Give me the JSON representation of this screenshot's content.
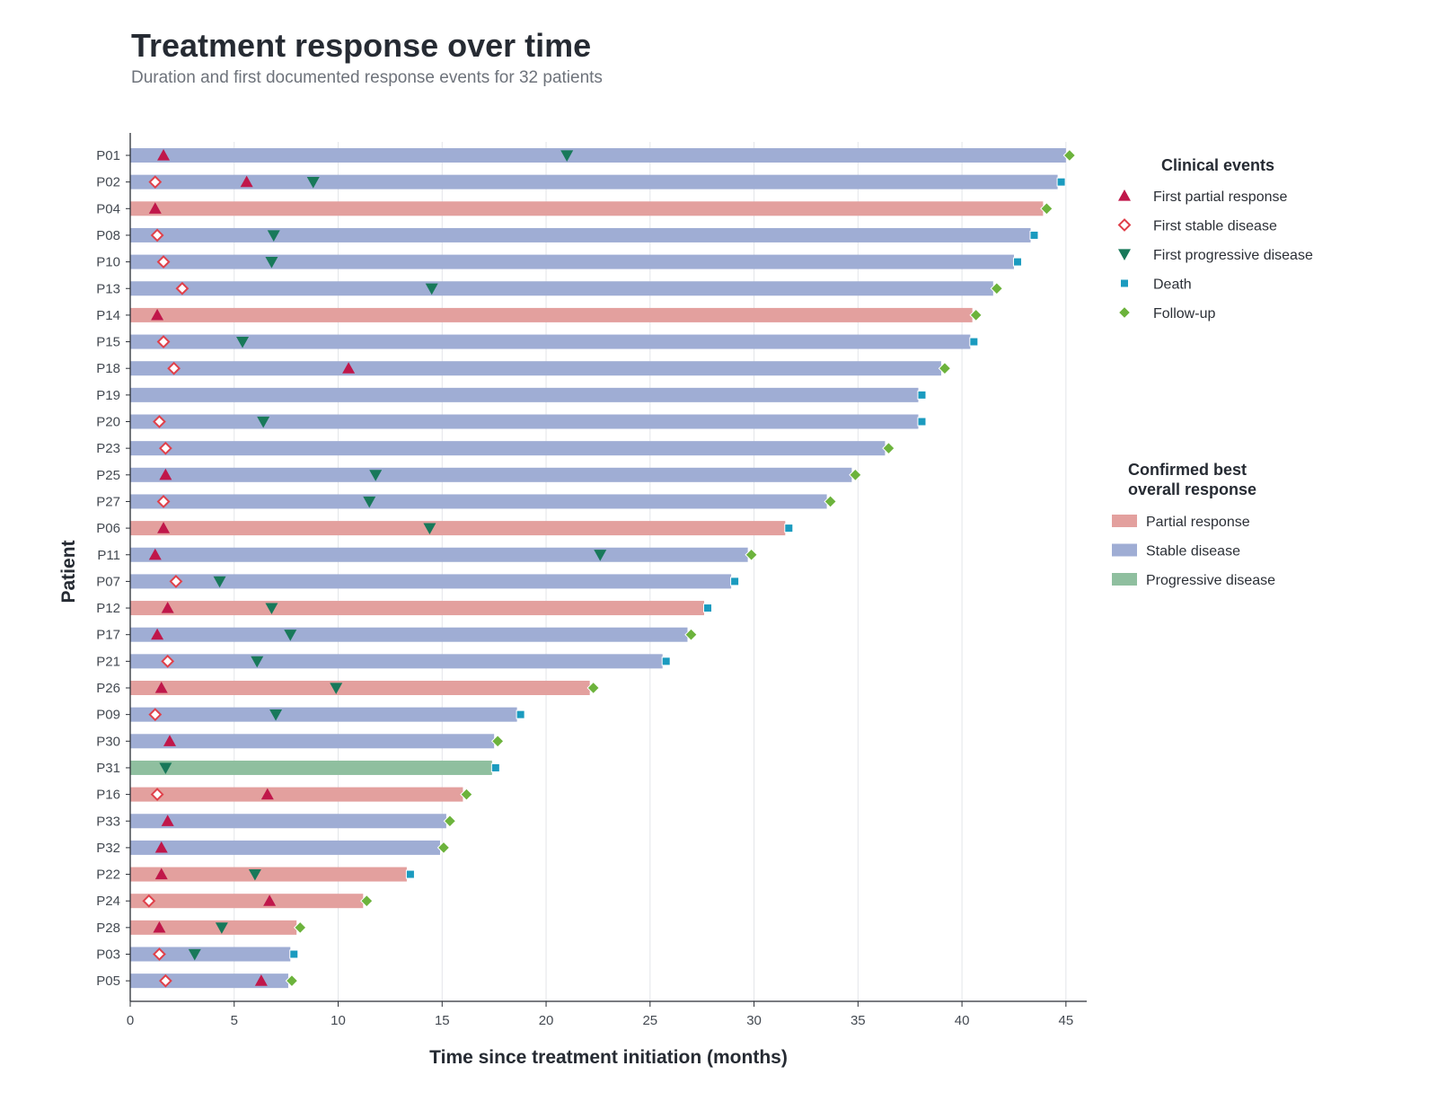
{
  "title": "Treatment response over time",
  "subtitle": "Duration and first documented response events for 32 patients",
  "chart_data": {
    "type": "swimmer",
    "xlabel": "Time since treatment initiation (months)",
    "ylabel": "Patient",
    "xlim": [
      0,
      46
    ],
    "xticks": [
      0,
      5,
      10,
      15,
      20,
      25,
      30,
      35,
      40,
      45
    ],
    "grid": "vertical",
    "colors": {
      "PR": "#e3a09e",
      "SD": "#9fadd4",
      "PD": "#8fbf9f",
      "partial": "#c0174a",
      "stable": "#e0404a",
      "progressive": "#18795a",
      "death": "#1b9bbf",
      "followup": "#6cb33c"
    },
    "legend_events": {
      "title": "Clinical events",
      "items": [
        {
          "key": "partial",
          "label": "First partial response",
          "marker": "triangle-up"
        },
        {
          "key": "stable",
          "label": "First stable disease",
          "marker": "diamond-open"
        },
        {
          "key": "progressive",
          "label": "First progressive disease",
          "marker": "triangle-down"
        },
        {
          "key": "death",
          "label": "Death",
          "marker": "square"
        },
        {
          "key": "followup",
          "label": "Follow-up",
          "marker": "diamond"
        }
      ]
    },
    "legend_response": {
      "title_lines": [
        "Confirmed best",
        "overall response"
      ],
      "items": [
        {
          "key": "PR",
          "label": "Partial response"
        },
        {
          "key": "SD",
          "label": "Stable disease"
        },
        {
          "key": "PD",
          "label": "Progressive disease"
        }
      ]
    },
    "patients": [
      {
        "id": "P01",
        "response": "SD",
        "duration": 45.0,
        "end": "followup",
        "events": [
          {
            "type": "partial",
            "t": 1.6
          },
          {
            "type": "progressive",
            "t": 21.0
          }
        ]
      },
      {
        "id": "P02",
        "response": "SD",
        "duration": 44.6,
        "end": "death",
        "events": [
          {
            "type": "stable",
            "t": 1.2
          },
          {
            "type": "partial",
            "t": 5.6
          },
          {
            "type": "progressive",
            "t": 8.8
          }
        ]
      },
      {
        "id": "P04",
        "response": "PR",
        "duration": 43.9,
        "end": "followup",
        "events": [
          {
            "type": "partial",
            "t": 1.2
          }
        ]
      },
      {
        "id": "P08",
        "response": "SD",
        "duration": 43.3,
        "end": "death",
        "events": [
          {
            "type": "stable",
            "t": 1.3
          },
          {
            "type": "progressive",
            "t": 6.9
          }
        ]
      },
      {
        "id": "P10",
        "response": "SD",
        "duration": 42.5,
        "end": "death",
        "events": [
          {
            "type": "stable",
            "t": 1.6
          },
          {
            "type": "progressive",
            "t": 6.8
          }
        ]
      },
      {
        "id": "P13",
        "response": "SD",
        "duration": 41.5,
        "end": "followup",
        "events": [
          {
            "type": "stable",
            "t": 2.5
          },
          {
            "type": "progressive",
            "t": 14.5
          }
        ]
      },
      {
        "id": "P14",
        "response": "PR",
        "duration": 40.5,
        "end": "followup",
        "events": [
          {
            "type": "partial",
            "t": 1.3
          }
        ]
      },
      {
        "id": "P15",
        "response": "SD",
        "duration": 40.4,
        "end": "death",
        "events": [
          {
            "type": "stable",
            "t": 1.6
          },
          {
            "type": "progressive",
            "t": 5.4
          }
        ]
      },
      {
        "id": "P18",
        "response": "SD",
        "duration": 39.0,
        "end": "followup",
        "events": [
          {
            "type": "stable",
            "t": 2.1
          },
          {
            "type": "partial",
            "t": 10.5
          }
        ]
      },
      {
        "id": "P19",
        "response": "SD",
        "duration": 37.9,
        "end": "death",
        "events": []
      },
      {
        "id": "P20",
        "response": "SD",
        "duration": 37.9,
        "end": "death",
        "events": [
          {
            "type": "stable",
            "t": 1.4
          },
          {
            "type": "progressive",
            "t": 6.4
          }
        ]
      },
      {
        "id": "P23",
        "response": "SD",
        "duration": 36.3,
        "end": "followup",
        "events": [
          {
            "type": "stable",
            "t": 1.7
          }
        ]
      },
      {
        "id": "P25",
        "response": "SD",
        "duration": 34.7,
        "end": "followup",
        "events": [
          {
            "type": "partial",
            "t": 1.7
          },
          {
            "type": "progressive",
            "t": 11.8
          }
        ]
      },
      {
        "id": "P27",
        "response": "SD",
        "duration": 33.5,
        "end": "followup",
        "events": [
          {
            "type": "stable",
            "t": 1.6
          },
          {
            "type": "progressive",
            "t": 11.5
          }
        ]
      },
      {
        "id": "P06",
        "response": "PR",
        "duration": 31.5,
        "end": "death",
        "events": [
          {
            "type": "partial",
            "t": 1.6
          },
          {
            "type": "progressive",
            "t": 14.4
          }
        ]
      },
      {
        "id": "P11",
        "response": "SD",
        "duration": 29.7,
        "end": "followup",
        "events": [
          {
            "type": "partial",
            "t": 1.2
          },
          {
            "type": "progressive",
            "t": 22.6
          }
        ]
      },
      {
        "id": "P07",
        "response": "SD",
        "duration": 28.9,
        "end": "death",
        "events": [
          {
            "type": "stable",
            "t": 2.2
          },
          {
            "type": "progressive",
            "t": 4.3
          }
        ]
      },
      {
        "id": "P12",
        "response": "PR",
        "duration": 27.6,
        "end": "death",
        "events": [
          {
            "type": "partial",
            "t": 1.8
          },
          {
            "type": "progressive",
            "t": 6.8
          }
        ]
      },
      {
        "id": "P17",
        "response": "SD",
        "duration": 26.8,
        "end": "followup",
        "events": [
          {
            "type": "partial",
            "t": 1.3
          },
          {
            "type": "progressive",
            "t": 7.7
          }
        ]
      },
      {
        "id": "P21",
        "response": "SD",
        "duration": 25.6,
        "end": "death",
        "events": [
          {
            "type": "stable",
            "t": 1.8
          },
          {
            "type": "progressive",
            "t": 6.1
          }
        ]
      },
      {
        "id": "P26",
        "response": "PR",
        "duration": 22.1,
        "end": "followup",
        "events": [
          {
            "type": "partial",
            "t": 1.5
          },
          {
            "type": "progressive",
            "t": 9.9
          }
        ]
      },
      {
        "id": "P09",
        "response": "SD",
        "duration": 18.6,
        "end": "death",
        "events": [
          {
            "type": "stable",
            "t": 1.2
          },
          {
            "type": "progressive",
            "t": 7.0
          }
        ]
      },
      {
        "id": "P30",
        "response": "SD",
        "duration": 17.5,
        "end": "followup",
        "events": [
          {
            "type": "partial",
            "t": 1.9
          }
        ]
      },
      {
        "id": "P31",
        "response": "PD",
        "duration": 17.4,
        "end": "death",
        "events": [
          {
            "type": "progressive",
            "t": 1.7
          }
        ]
      },
      {
        "id": "P16",
        "response": "PR",
        "duration": 16.0,
        "end": "followup",
        "events": [
          {
            "type": "stable",
            "t": 1.3
          },
          {
            "type": "partial",
            "t": 6.6
          }
        ]
      },
      {
        "id": "P33",
        "response": "SD",
        "duration": 15.2,
        "end": "followup",
        "events": [
          {
            "type": "partial",
            "t": 1.8
          }
        ]
      },
      {
        "id": "P32",
        "response": "SD",
        "duration": 14.9,
        "end": "followup",
        "events": [
          {
            "type": "partial",
            "t": 1.5
          }
        ]
      },
      {
        "id": "P22",
        "response": "PR",
        "duration": 13.3,
        "end": "death",
        "events": [
          {
            "type": "partial",
            "t": 1.5
          },
          {
            "type": "progressive",
            "t": 6.0
          }
        ]
      },
      {
        "id": "P24",
        "response": "PR",
        "duration": 11.2,
        "end": "followup",
        "events": [
          {
            "type": "stable",
            "t": 0.9
          },
          {
            "type": "partial",
            "t": 6.7
          }
        ]
      },
      {
        "id": "P28",
        "response": "PR",
        "duration": 8.0,
        "end": "followup",
        "events": [
          {
            "type": "partial",
            "t": 1.4
          },
          {
            "type": "progressive",
            "t": 4.4
          }
        ]
      },
      {
        "id": "P03",
        "response": "SD",
        "duration": 7.7,
        "end": "death",
        "events": [
          {
            "type": "stable",
            "t": 1.4
          },
          {
            "type": "progressive",
            "t": 3.1
          }
        ]
      },
      {
        "id": "P05",
        "response": "SD",
        "duration": 7.6,
        "end": "followup",
        "events": [
          {
            "type": "stable",
            "t": 1.7
          },
          {
            "type": "partial",
            "t": 6.3
          }
        ]
      }
    ]
  }
}
